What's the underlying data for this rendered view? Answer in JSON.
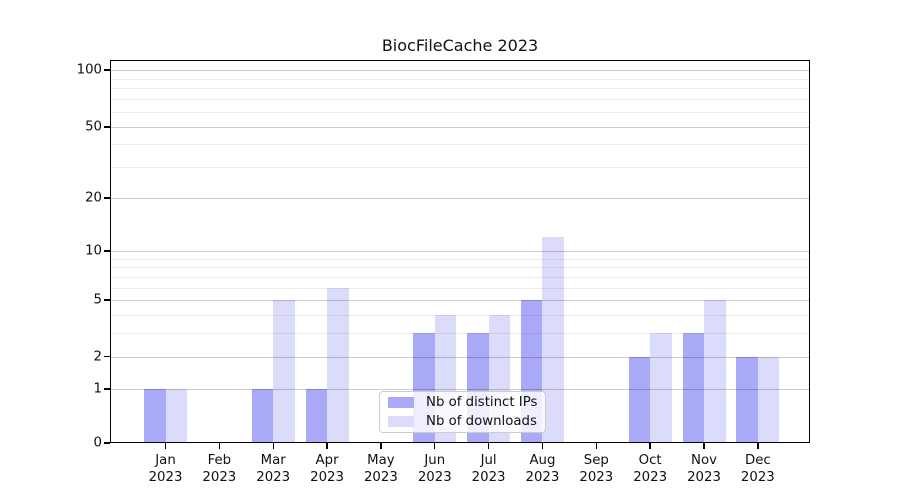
{
  "title": "BiocFileCache 2023",
  "chart_data": {
    "type": "bar",
    "title": "BiocFileCache 2023",
    "categories": [
      "Jan 2023",
      "Feb 2023",
      "Mar 2023",
      "Apr 2023",
      "May 2023",
      "Jun 2023",
      "Jul 2023",
      "Aug 2023",
      "Sep 2023",
      "Oct 2023",
      "Nov 2023",
      "Dec 2023"
    ],
    "series": [
      {
        "name": "Nb of distinct IPs",
        "color": "#a9a9f7",
        "values": [
          1,
          0,
          1,
          1,
          0,
          3,
          3,
          5,
          0,
          2,
          3,
          2
        ]
      },
      {
        "name": "Nb of downloads",
        "color": "#dbdbfa",
        "values": [
          1,
          0,
          5,
          6,
          0,
          4,
          4,
          12,
          0,
          3,
          5,
          2
        ]
      }
    ],
    "xlabel": "",
    "ylabel": "",
    "y_scale": "log1p",
    "y_ticks": [
      0,
      1,
      2,
      5,
      10,
      20,
      50,
      100
    ],
    "y_minor_ticks": [
      3,
      4,
      6,
      7,
      8,
      9,
      30,
      40,
      60,
      70,
      80,
      90
    ],
    "ylim": [
      0,
      115
    ],
    "grid": "horizontal major+minor, drawn above bars",
    "legend_position": "inside plot, bottom center-left",
    "frame": "full box spines"
  }
}
